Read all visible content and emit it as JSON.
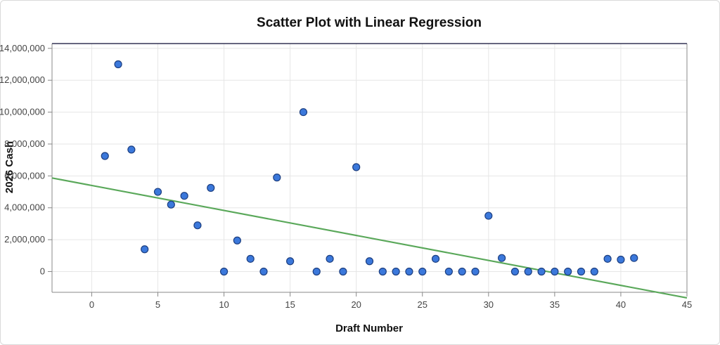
{
  "chart_data": {
    "type": "scatter",
    "title": "Scatter Plot with Linear Regression",
    "xlabel": "Draft Number",
    "ylabel": "2026 Cash",
    "xlim": [
      -3,
      45
    ],
    "ylim": [
      -1300000,
      14300000
    ],
    "x_ticks": [
      0,
      5,
      10,
      15,
      20,
      25,
      30,
      35,
      40,
      45
    ],
    "y_ticks": [
      0,
      2000000,
      4000000,
      6000000,
      8000000,
      10000000,
      12000000,
      14000000
    ],
    "y_tick_labels": [
      "0",
      "2,000,000",
      "4,000,000",
      "6,000,000",
      "8,000,000",
      "10,000,000",
      "12,000,000",
      "14,000,000"
    ],
    "grid": true,
    "points": {
      "x": [
        1,
        2,
        3,
        4,
        5,
        6,
        7,
        8,
        9,
        10,
        11,
        12,
        13,
        14,
        15,
        16,
        17,
        18,
        19,
        20,
        21,
        22,
        23,
        24,
        25,
        26,
        27,
        28,
        29,
        30,
        31,
        32,
        33,
        34,
        35,
        36,
        37,
        38,
        39,
        40,
        41
      ],
      "y": [
        7250000,
        13000000,
        7650000,
        1400000,
        5000000,
        4200000,
        4750000,
        2900000,
        5250000,
        0,
        1950000,
        800000,
        0,
        5900000,
        650000,
        10000000,
        0,
        800000,
        0,
        6550000,
        650000,
        0,
        0,
        0,
        0,
        800000,
        0,
        0,
        0,
        3500000,
        850000,
        0,
        0,
        0,
        0,
        0,
        0,
        0,
        800000,
        750000,
        850000
      ]
    },
    "regression": {
      "x": [
        -3,
        45
      ],
      "y": [
        5870000,
        -1650000
      ]
    },
    "colors": {
      "points": "#3b78db",
      "point_stroke": "#1d3f80",
      "regression": "#5aa85a",
      "grid": "#e6e6e6",
      "axis": "#888888",
      "top_border": "#333355"
    }
  }
}
